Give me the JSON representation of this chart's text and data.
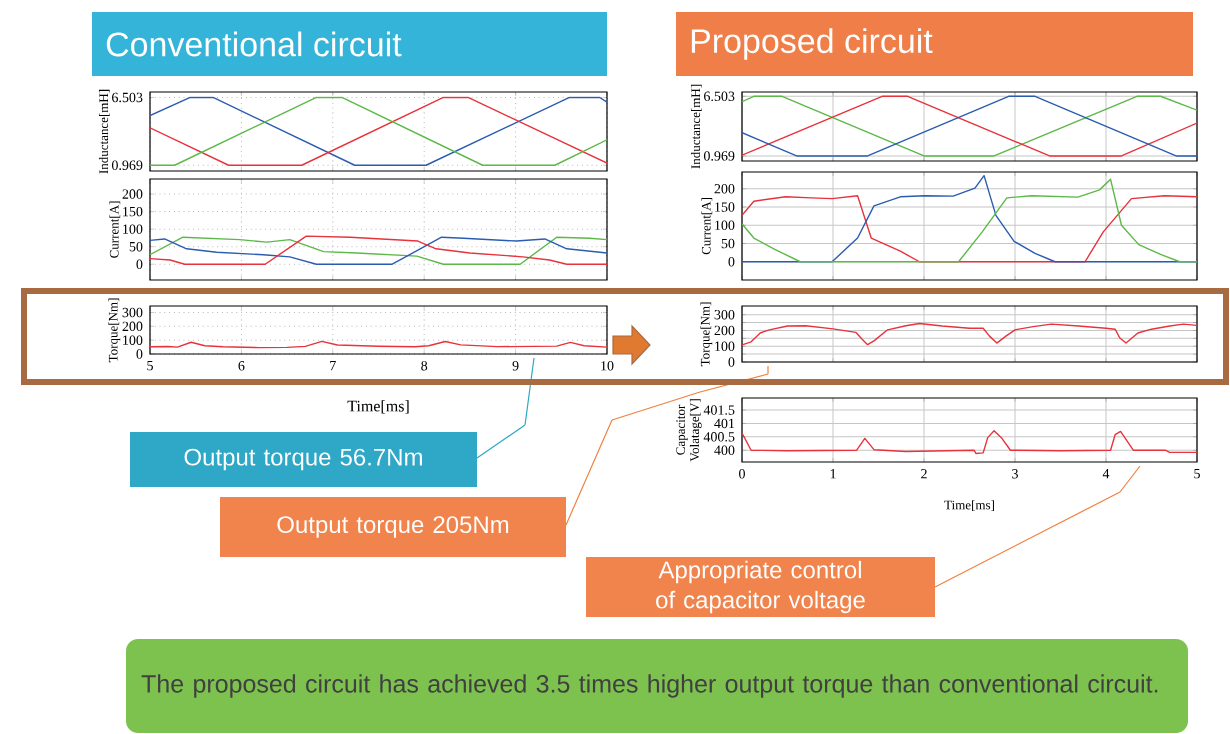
{
  "chart_data": [
    {
      "type": "line",
      "title": "Conventional circuit",
      "ylabel": "Inductance[mH]",
      "xlim": [
        5,
        10
      ],
      "xticks": [
        5,
        6,
        7,
        8,
        9,
        10
      ],
      "ylim": [
        0.5,
        6.95
      ],
      "yticks": [
        0.969,
        6.503
      ],
      "grid": true,
      "tick_labels": "y",
      "series": [
        {
          "color": "#2a5cb0",
          "x": [
            5,
            5.44,
            5.69,
            7.24,
            8.02,
            9.59,
            9.92,
            10
          ],
          "values": [
            5.02,
            6.503,
            6.503,
            0.969,
            0.969,
            6.503,
            6.503,
            6.12
          ]
        },
        {
          "color": "#e8323c",
          "x": [
            5,
            5.86,
            6.66,
            8.21,
            8.48,
            10
          ],
          "values": [
            4.03,
            0.969,
            0.969,
            6.503,
            6.503,
            1.15
          ]
        },
        {
          "color": "#5cb848",
          "x": [
            5,
            5.27,
            6.82,
            7.1,
            8.64,
            9.43,
            10
          ],
          "values": [
            0.969,
            0.969,
            6.503,
            6.503,
            0.969,
            0.969,
            3.05
          ]
        }
      ]
    },
    {
      "type": "line",
      "ylabel": "Current[A]",
      "xlim": [
        5,
        10
      ],
      "xticks": [
        5,
        6,
        7,
        8,
        9,
        10
      ],
      "ylim": [
        -45,
        243
      ],
      "yticks": [
        0,
        50,
        100,
        150,
        200
      ],
      "grid": true,
      "tick_labels": "y",
      "series": [
        {
          "color": "#5cb848",
          "x": [
            5,
            5.36,
            5.98,
            6.28,
            6.53,
            6.9,
            7.26,
            7.92,
            8.21,
            9.05,
            9.45,
            9.81,
            10
          ],
          "values": [
            27,
            77,
            70,
            63,
            70,
            36,
            32,
            23,
            0,
            0,
            77,
            74,
            70
          ]
        },
        {
          "color": "#2a5cb0",
          "x": [
            5,
            5.16,
            5.4,
            5.73,
            6.24,
            6.53,
            6.82,
            7.65,
            8.19,
            8.43,
            9.01,
            9.32,
            9.56,
            10
          ],
          "values": [
            68,
            72,
            44,
            34,
            27,
            21,
            0,
            0,
            77,
            74,
            66,
            72,
            44,
            32
          ]
        },
        {
          "color": "#e8323c",
          "x": [
            5,
            5.22,
            5.38,
            6.26,
            6.71,
            7.19,
            7.93,
            8.13,
            8.5,
            9.08,
            9.37,
            9.56,
            10
          ],
          "values": [
            16,
            12,
            0,
            0,
            80,
            77,
            66,
            44,
            32,
            21,
            12,
            0,
            0
          ]
        }
      ]
    },
    {
      "type": "line",
      "ylabel": "Torque[Nm]",
      "xlabel": "Time[ms]",
      "xlim": [
        5,
        10
      ],
      "xticks": [
        5,
        6,
        7,
        8,
        9,
        10
      ],
      "ylim": [
        0,
        347
      ],
      "yticks": [
        0,
        100,
        200,
        300
      ],
      "grid": true,
      "annotations": [
        "Output torque 56.7Nm"
      ],
      "series": [
        {
          "color": "#e8323c",
          "x": [
            5,
            5.2,
            5.3,
            5.45,
            5.6,
            5.8,
            6.2,
            6.5,
            6.7,
            6.88,
            7.05,
            7.5,
            7.9,
            8.05,
            8.23,
            8.4,
            8.8,
            9.2,
            9.45,
            9.6,
            9.75,
            10
          ],
          "values": [
            52,
            54,
            50,
            85,
            60,
            52,
            46,
            48,
            55,
            91,
            65,
            56,
            52,
            60,
            90,
            66,
            53,
            55,
            57,
            84,
            60,
            50
          ]
        }
      ]
    },
    {
      "type": "line",
      "title": "Proposed  circuit",
      "ylabel": "Inductance[mH]",
      "xlim": [
        0,
        5
      ],
      "xticks": [
        0,
        1,
        2,
        3,
        4,
        5
      ],
      "ylim": [
        0.5,
        6.9
      ],
      "yticks": [
        0.969,
        6.503
      ],
      "grid": true,
      "tick_labels": "y",
      "series": [
        {
          "color": "#5cb848",
          "x": [
            0,
            0.13,
            0.44,
            2.0,
            2.77,
            4.34,
            4.6,
            5
          ],
          "values": [
            6.0,
            6.503,
            6.503,
            0.969,
            0.969,
            6.503,
            6.503,
            5.21
          ]
        },
        {
          "color": "#e8323c",
          "x": [
            0,
            1.54,
            1.82,
            3.38,
            4.17,
            5
          ],
          "values": [
            1.04,
            6.503,
            6.503,
            0.969,
            0.969,
            4.02
          ]
        },
        {
          "color": "#2a5cb0",
          "x": [
            0,
            0.6,
            1.38,
            2.93,
            3.22,
            4.77,
            5
          ],
          "values": [
            3.12,
            0.969,
            0.969,
            6.503,
            6.503,
            0.969,
            0.969
          ]
        }
      ]
    },
    {
      "type": "line",
      "ylabel": "Current[A]",
      "xlim": [
        0,
        5
      ],
      "xticks": [
        0,
        1,
        2,
        3,
        4,
        5
      ],
      "ylim": [
        -50,
        246
      ],
      "yticks": [
        0,
        50,
        100,
        150,
        200
      ],
      "grid": true,
      "tick_labels": "y",
      "series": [
        {
          "color": "#e8323c",
          "x": [
            0,
            0.13,
            0.48,
            0.76,
            0.99,
            1.27,
            1.42,
            1.74,
            1.95,
            3.77,
            3.97,
            4.28,
            4.64,
            5
          ],
          "values": [
            127,
            166,
            178,
            175,
            173,
            181,
            65,
            29,
            0,
            0,
            82,
            173,
            181,
            178
          ]
        },
        {
          "color": "#2a5cb0",
          "x": [
            0,
            0.99,
            1.27,
            1.45,
            1.74,
            2.01,
            2.32,
            2.56,
            2.66,
            2.79,
            2.99,
            3.22,
            3.44,
            5
          ],
          "values": [
            0,
            0,
            65,
            153,
            178,
            181,
            180,
            202,
            236,
            127,
            56,
            23,
            0,
            0
          ]
        },
        {
          "color": "#5cb848",
          "x": [
            0,
            0.13,
            0.36,
            0.64,
            2.38,
            2.64,
            2.91,
            3.18,
            3.69,
            3.93,
            4.05,
            4.17,
            4.36,
            4.6,
            4.81,
            5
          ],
          "values": [
            104,
            65,
            34,
            0,
            0,
            82,
            175,
            181,
            177,
            197,
            226,
            100,
            47,
            20,
            0,
            0
          ]
        }
      ]
    },
    {
      "type": "line",
      "ylabel": "Torque[Nm]",
      "xlim": [
        0,
        5
      ],
      "xticks": [
        0,
        1,
        2,
        3,
        4,
        5
      ],
      "ylim": [
        0,
        355
      ],
      "yticks": [
        0,
        {
          "value": 50,
          "label": null
        },
        100,
        {
          "value": 150,
          "label": null
        },
        200,
        {
          "value": 250,
          "label": null
        },
        300
      ],
      "grid": true,
      "tick_labels": "y",
      "annotations": [
        "Output torque 205Nm"
      ],
      "series": [
        {
          "color": "#e8323c",
          "x": [
            0,
            0.1,
            0.2,
            0.3,
            0.5,
            0.7,
            1.0,
            1.25,
            1.32,
            1.38,
            1.45,
            1.6,
            1.8,
            1.95,
            2.2,
            2.5,
            2.65,
            2.72,
            2.8,
            2.9,
            3.0,
            3.2,
            3.4,
            3.7,
            4.0,
            4.1,
            4.15,
            4.22,
            4.35,
            4.5,
            4.7,
            4.85,
            5
          ],
          "values": [
            108,
            128,
            184,
            204,
            228,
            230,
            210,
            188,
            144,
            110,
            134,
            204,
            230,
            244,
            228,
            214,
            214,
            164,
            120,
            164,
            204,
            224,
            240,
            228,
            214,
            208,
            154,
            120,
            184,
            208,
            228,
            240,
            232
          ]
        }
      ]
    },
    {
      "type": "line",
      "ylabel": "Capacitor Volatage[V]",
      "xlabel": "Time[ms]",
      "xlim": [
        0,
        5
      ],
      "xticks": [
        0,
        1,
        2,
        3,
        4,
        5
      ],
      "ylim": [
        399.56,
        401.95
      ],
      "yticks": [
        400,
        400.5,
        401,
        401.5
      ],
      "grid": true,
      "annotations": [
        "Appropriate control of capacitor voltage",
        "The proposed circuit has achieved 3.5 times higher output torque than conventional circuit."
      ],
      "series": [
        {
          "color": "#e8323c",
          "x": [
            0,
            0.1,
            0.5,
            1.26,
            1.35,
            1.45,
            1.8,
            2.55,
            2.57,
            2.65,
            2.7,
            2.77,
            2.85,
            2.95,
            3.5,
            4.05,
            4.1,
            4.16,
            4.3,
            4.65,
            4.7,
            5
          ],
          "values": [
            400.64,
            400,
            399.98,
            400,
            400.44,
            400.02,
            399.95,
            400,
            399.88,
            399.9,
            400.47,
            400.73,
            400.47,
            400,
            399.98,
            400,
            400.58,
            400.7,
            400,
            400,
            399.92,
            399.92
          ]
        }
      ]
    }
  ]
}
